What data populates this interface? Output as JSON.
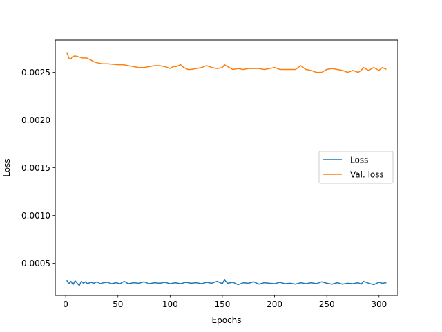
{
  "chart_data": {
    "type": "line",
    "xlabel": "Epochs",
    "ylabel": "Loss",
    "xlim": [
      -10,
      318
    ],
    "ylim": [
      0.000162,
      0.002838
    ],
    "xticks": [
      0,
      50,
      100,
      150,
      200,
      250,
      300
    ],
    "yticks": [
      0.0005,
      0.001,
      0.0015,
      0.002,
      0.0025
    ],
    "ytick_labels": [
      "0.0005",
      "0.0010",
      "0.0015",
      "0.0020",
      "0.0025"
    ],
    "legend_position": "center-right",
    "grid": false,
    "series": [
      {
        "name": "Loss",
        "color": "#1f77b4",
        "x": [
          1,
          3,
          5,
          7,
          9,
          11,
          13,
          15,
          17,
          19,
          21,
          24,
          27,
          30,
          33,
          36,
          40,
          44,
          48,
          52,
          56,
          60,
          65,
          70,
          75,
          80,
          85,
          90,
          95,
          100,
          105,
          110,
          115,
          120,
          125,
          130,
          135,
          140,
          145,
          150,
          152,
          155,
          160,
          165,
          170,
          175,
          180,
          185,
          190,
          195,
          200,
          205,
          210,
          215,
          220,
          225,
          230,
          235,
          240,
          245,
          250,
          255,
          260,
          265,
          270,
          275,
          280,
          283,
          285,
          290,
          295,
          300,
          303,
          307
        ],
        "y": [
          0.00032,
          0.000285,
          0.00031,
          0.000275,
          0.000315,
          0.00029,
          0.000265,
          0.00031,
          0.00029,
          0.000305,
          0.000285,
          0.0003,
          0.00029,
          0.000305,
          0.000285,
          0.000295,
          0.0003,
          0.000285,
          0.000295,
          0.000285,
          0.00031,
          0.000285,
          0.000295,
          0.00029,
          0.000305,
          0.000285,
          0.000295,
          0.00029,
          0.0003,
          0.000285,
          0.000295,
          0.000285,
          0.0003,
          0.00029,
          0.000295,
          0.000285,
          0.0003,
          0.00029,
          0.00031,
          0.000285,
          0.000325,
          0.00029,
          0.0003,
          0.000275,
          0.000295,
          0.00029,
          0.000305,
          0.00028,
          0.000295,
          0.00029,
          0.000285,
          0.0003,
          0.000285,
          0.00029,
          0.00028,
          0.000295,
          0.000285,
          0.000295,
          0.000285,
          0.000305,
          0.00029,
          0.00028,
          0.000295,
          0.00028,
          0.00029,
          0.000285,
          0.000295,
          0.00028,
          0.00031,
          0.00029,
          0.000275,
          0.0003,
          0.00029,
          0.000295
        ]
      },
      {
        "name": "Val. loss",
        "color": "#ff7f0e",
        "x": [
          1,
          2,
          3,
          4,
          5,
          6,
          8,
          10,
          13,
          16,
          20,
          24,
          27,
          30,
          35,
          40,
          50,
          55,
          60,
          65,
          70,
          75,
          80,
          85,
          90,
          95,
          100,
          103,
          106,
          110,
          113,
          117,
          120,
          125,
          130,
          135,
          140,
          145,
          150,
          152,
          155,
          160,
          165,
          170,
          175,
          180,
          185,
          190,
          195,
          200,
          205,
          210,
          215,
          220,
          225,
          230,
          235,
          240,
          245,
          250,
          255,
          260,
          265,
          270,
          275,
          280,
          283,
          285,
          290,
          295,
          300,
          303,
          307
        ],
        "y": [
          0.00271,
          0.00268,
          0.00265,
          0.00264,
          0.00264,
          0.00266,
          0.00267,
          0.00267,
          0.00266,
          0.00265,
          0.00265,
          0.00263,
          0.00261,
          0.0026,
          0.00259,
          0.00259,
          0.00258,
          0.00258,
          0.00257,
          0.00256,
          0.00255,
          0.00255,
          0.00256,
          0.00257,
          0.00257,
          0.00256,
          0.00254,
          0.00256,
          0.00256,
          0.00258,
          0.00255,
          0.00253,
          0.00253,
          0.00254,
          0.00255,
          0.00257,
          0.00255,
          0.00254,
          0.00255,
          0.00258,
          0.00256,
          0.00253,
          0.00254,
          0.00253,
          0.00254,
          0.00254,
          0.00254,
          0.00253,
          0.00254,
          0.00255,
          0.00253,
          0.00253,
          0.00253,
          0.00253,
          0.00257,
          0.00253,
          0.00252,
          0.0025,
          0.0025,
          0.00253,
          0.00254,
          0.00253,
          0.00252,
          0.0025,
          0.00252,
          0.0025,
          0.00252,
          0.00255,
          0.00252,
          0.00255,
          0.00252,
          0.00255,
          0.00253
        ]
      }
    ]
  }
}
